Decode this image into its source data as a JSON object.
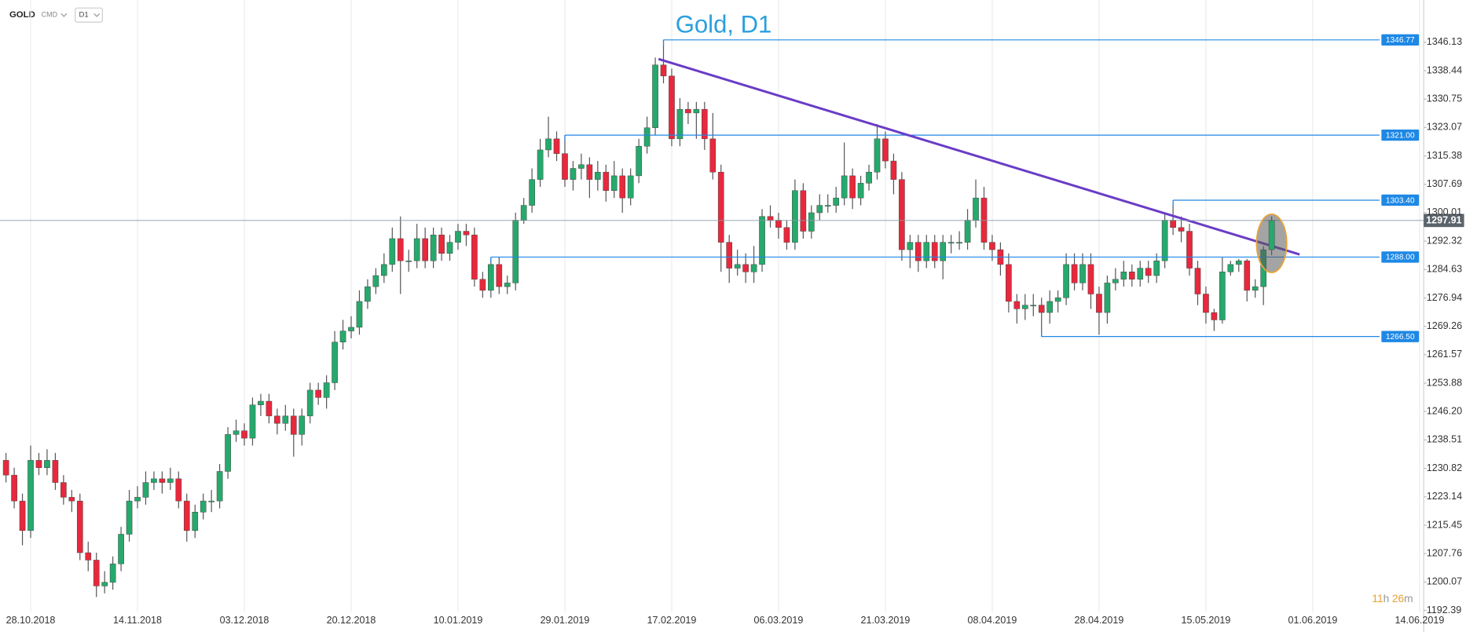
{
  "toolbar": {
    "symbol": "GOLD",
    "group": "CMD",
    "interval": "D1"
  },
  "countdown": [
    "11",
    "h",
    "26",
    "m"
  ],
  "chart_data": {
    "type": "candlestick",
    "title": "Gold, D1",
    "up_color": "#26a96c",
    "down_color": "#e8283c",
    "categories": [
      null,
      null,
      null,
      "28.10.2018",
      null,
      null,
      null,
      null,
      null,
      null,
      null,
      null,
      null,
      null,
      null,
      null,
      "14.11.2018",
      null,
      null,
      null,
      null,
      null,
      null,
      null,
      null,
      null,
      null,
      null,
      null,
      "03.12.2018",
      null,
      null,
      null,
      null,
      null,
      null,
      null,
      null,
      null,
      null,
      null,
      null,
      "20.12.2018",
      null,
      null,
      null,
      null,
      null,
      null,
      null,
      null,
      null,
      null,
      null,
      null,
      "10.01.2019",
      null,
      null,
      null,
      null,
      null,
      null,
      null,
      null,
      null,
      null,
      null,
      null,
      "29.01.2019",
      null,
      null,
      null,
      null,
      null,
      null,
      null,
      null,
      null,
      null,
      null,
      null,
      "17.02.2019",
      null,
      null,
      null,
      null,
      null,
      null,
      null,
      null,
      null,
      null,
      null,
      null,
      "06.03.2019",
      null,
      null,
      null,
      null,
      null,
      null,
      null,
      null,
      null,
      null,
      null,
      null,
      "21.03.2019",
      null,
      null,
      null,
      null,
      null,
      null,
      null,
      null,
      null,
      null,
      null,
      null,
      "08.04.2019",
      null,
      null,
      null,
      null,
      null,
      null,
      null,
      null,
      null,
      null,
      null,
      null,
      "28.04.2019",
      null,
      null,
      null,
      null,
      null,
      null,
      null,
      null,
      null,
      null,
      null,
      null,
      "15.05.2019",
      null,
      null,
      null,
      null,
      null,
      null,
      null,
      null,
      null,
      null,
      null,
      null,
      "01.06.2019",
      null,
      null,
      null,
      null,
      null,
      null,
      null,
      null,
      null,
      null,
      null,
      null,
      "14.06.2019"
    ],
    "open": [
      1233,
      1229,
      1222,
      1214,
      1233,
      1231,
      1233,
      1227,
      1223,
      1222,
      1208,
      1206,
      1199,
      1200,
      1205,
      1213,
      1222,
      1223,
      1227,
      1228,
      1227,
      1228,
      1222,
      1214,
      1219,
      1222,
      1222,
      1230,
      1240,
      1241,
      1239,
      1248,
      1249,
      1245,
      1243,
      1245,
      1240,
      1245,
      1252,
      1250,
      1254,
      1265,
      1268,
      1269,
      1276,
      1280,
      1283,
      1286,
      1293,
      1287,
      1287,
      1293,
      1287,
      1294,
      1289,
      1292,
      1295,
      1294,
      1282,
      1279,
      1286,
      1280,
      1281,
      1298,
      1302,
      1309,
      1317,
      1320,
      1316,
      1309,
      1312,
      1313,
      1309,
      1311,
      1306,
      1310,
      1304,
      1310,
      1318,
      1323,
      1340,
      1337,
      1320,
      1328,
      1327,
      1328,
      1320,
      1311,
      1292,
      1285,
      1286,
      1284,
      1286,
      1299,
      1298,
      1296,
      1292,
      1306,
      1295,
      1300,
      1302,
      1302,
      1304,
      1310,
      1304,
      1308,
      1311,
      1320,
      1314,
      1309,
      1290,
      1292,
      1287,
      1292,
      1287,
      1292,
      1292,
      1292,
      1298,
      1304,
      1292,
      1290,
      1286,
      1276,
      1274,
      1275,
      1275,
      1273,
      1276,
      1277,
      1286,
      1281,
      1286,
      1278,
      1273,
      1281,
      1282,
      1284,
      1282,
      1285,
      1283,
      1287,
      1298,
      1296,
      1295,
      1285,
      1278,
      1273,
      1271,
      1284,
      1286,
      1287,
      1279,
      1280,
      1290,
      null,
      null,
      null,
      null,
      null,
      null,
      null,
      null,
      null,
      null,
      null,
      null,
      null,
      null,
      null,
      null,
      null,
      null
    ],
    "high": [
      1235,
      1231,
      1224,
      1237,
      1235,
      1236,
      1235,
      1229,
      1225,
      1224,
      1211,
      1208,
      1203,
      1207,
      1215,
      1225,
      1226,
      1230,
      1230,
      1230,
      1231,
      1230,
      1224,
      1221,
      1224,
      1225,
      1232,
      1242,
      1244,
      1243,
      1250,
      1251,
      1251,
      1247,
      1248,
      1247,
      1247,
      1254,
      1254,
      1256,
      1268,
      1271,
      1272,
      1279,
      1282,
      1285,
      1289,
      1296,
      1299,
      1290,
      1297,
      1296,
      1296,
      1296,
      1294,
      1297,
      1297,
      1296,
      1284,
      1288,
      1288,
      1283,
      1300,
      1304,
      1312,
      1320,
      1326,
      1322,
      1321,
      1314,
      1316,
      1315,
      1314,
      1313,
      1314,
      1312,
      1312,
      1320,
      1326,
      1342,
      1346.77,
      1339,
      1331,
      1330,
      1330,
      1330,
      1327,
      1313,
      1294,
      1290,
      1289,
      1291,
      1301,
      1302,
      1300,
      1298,
      1309,
      1308,
      1302,
      1305,
      1305,
      1307,
      1319,
      1312,
      1310,
      1313,
      1324,
      1322,
      1316,
      1311,
      1294,
      1294,
      1294,
      1294,
      1294,
      1294,
      1295,
      1301,
      1309,
      1307,
      1294,
      1292,
      1289,
      1278,
      1278,
      1278,
      1277,
      1279,
      1279,
      1289,
      1289,
      1289,
      1289,
      1280,
      1283,
      1285,
      1287,
      1286,
      1287,
      1287,
      1289,
      1300,
      1303.4,
      1299,
      1297,
      1287,
      1280,
      1274,
      1288,
      1287,
      1287.5,
      1287.5,
      1282,
      1291,
      1299,
      null,
      null,
      null,
      null,
      null,
      null,
      null,
      null,
      null,
      null,
      null,
      null,
      null,
      null,
      null,
      null,
      null,
      null
    ],
    "low": [
      1227,
      1220,
      1210,
      1212,
      1229,
      1229,
      1225,
      1221,
      1219,
      1206,
      1203,
      1196,
      1197,
      1198,
      1203,
      1211,
      1220,
      1221,
      1225,
      1224,
      1225,
      1220,
      1211,
      1212,
      1217,
      1219,
      1220,
      1228,
      1238,
      1237,
      1237,
      1245,
      1243,
      1240,
      1241,
      1234,
      1237,
      1243,
      1248,
      1247,
      1252,
      1263,
      1266,
      1267,
      1274,
      1278,
      1281,
      1284,
      1278,
      1284,
      1285,
      1285,
      1285,
      1287,
      1287,
      1290,
      1291,
      1280,
      1277,
      1277,
      1278,
      1278,
      1279,
      1297,
      1300,
      1307,
      1315,
      1314,
      1307,
      1306,
      1309,
      1304,
      1306,
      1303,
      1304,
      1300,
      1302,
      1308,
      1316,
      1321,
      1335,
      1318,
      1318,
      1324,
      1320,
      1317,
      1309,
      1284,
      1281,
      1283,
      1281,
      1281,
      1284,
      1296,
      1293,
      1290,
      1290,
      1293,
      1293,
      1298,
      1300,
      1300,
      1302,
      1301,
      1302,
      1306,
      1309,
      1312,
      1305,
      1287,
      1285,
      1284,
      1285,
      1285,
      1282,
      1289,
      1290,
      1290,
      1296,
      1290,
      1287,
      1283,
      1273,
      1270,
      1271,
      1272,
      1266.5,
      1270,
      1273,
      1275,
      1279,
      1279,
      1274,
      1267,
      1270,
      1279,
      1280,
      1280,
      1280,
      1281,
      1281,
      1285,
      1294,
      1292,
      1283,
      1275,
      1270,
      1268,
      1270,
      1283,
      1284,
      1276,
      1277,
      1275,
      1288.5,
      null,
      null,
      null,
      null,
      null,
      null,
      null,
      null,
      null,
      null,
      null,
      null,
      null,
      null,
      null,
      null,
      null,
      null
    ],
    "close": [
      1229,
      1222,
      1214,
      1233,
      1231,
      1233,
      1227,
      1223,
      1222,
      1208,
      1206,
      1199,
      1200,
      1205,
      1213,
      1222,
      1223,
      1227,
      1228,
      1227,
      1228,
      1222,
      1214,
      1219,
      1222,
      1222,
      1230,
      1240,
      1241,
      1239,
      1248,
      1249,
      1245,
      1243,
      1245,
      1240,
      1245,
      1252,
      1250,
      1254,
      1265,
      1268,
      1269,
      1276,
      1280,
      1283,
      1286,
      1293,
      1287,
      1287,
      1293,
      1287,
      1294,
      1289,
      1292,
      1295,
      1294,
      1282,
      1279,
      1286,
      1280,
      1281,
      1298,
      1302,
      1309,
      1317,
      1320,
      1316,
      1309,
      1312,
      1313,
      1309,
      1311,
      1306,
      1310,
      1304,
      1310,
      1318,
      1323,
      1340,
      1337,
      1320,
      1328,
      1327,
      1328,
      1320,
      1311,
      1292,
      1285,
      1286,
      1284,
      1286,
      1299,
      1298,
      1296,
      1292,
      1306,
      1295,
      1300,
      1302,
      1302,
      1304,
      1310,
      1304,
      1308,
      1311,
      1320,
      1314,
      1309,
      1290,
      1292,
      1287,
      1292,
      1287,
      1292,
      1292,
      1292,
      1298,
      1304,
      1292,
      1290,
      1286,
      1276,
      1274,
      1275,
      1275,
      1273,
      1276,
      1277,
      1286,
      1281,
      1286,
      1278,
      1273,
      1281,
      1282,
      1284,
      1282,
      1285,
      1283,
      1287,
      1298,
      1296,
      1295,
      1285,
      1278,
      1273,
      1271,
      1284,
      1286,
      1287,
      1279,
      1280,
      1290,
      1297.91,
      null,
      null,
      null,
      null,
      null,
      null,
      null,
      null,
      null,
      null,
      null,
      null,
      null,
      null,
      null,
      null,
      null,
      null
    ],
    "ylim": [
      1192.39,
      1357.57
    ],
    "yticks": [
      1346.13,
      1338.44,
      1330.75,
      1323.07,
      1315.38,
      1307.69,
      1300.01,
      1292.32,
      1284.63,
      1276.94,
      1269.26,
      1261.57,
      1253.88,
      {
        "value": 1246.2,
        "label": "1246.20"
      },
      1238.51,
      1230.82,
      1223.14,
      1215.45,
      1207.76,
      1200.07,
      1192.39
    ],
    "levels": [
      1346.77,
      {
        "value": 1321,
        "label": "1321.00"
      },
      {
        "value": 1303.4,
        "label": "1303.40"
      },
      {
        "value": 1288,
        "label": "1288.00"
      },
      {
        "value": 1266.5,
        "label": "1266.50"
      }
    ],
    "level_color": "#1e88e5",
    "trendline": {
      "color": "#6a3cc6",
      "x": [
        79.4,
        157.4
      ],
      "y": [
        1341.6,
        1288.7
      ]
    },
    "grid": true
  }
}
